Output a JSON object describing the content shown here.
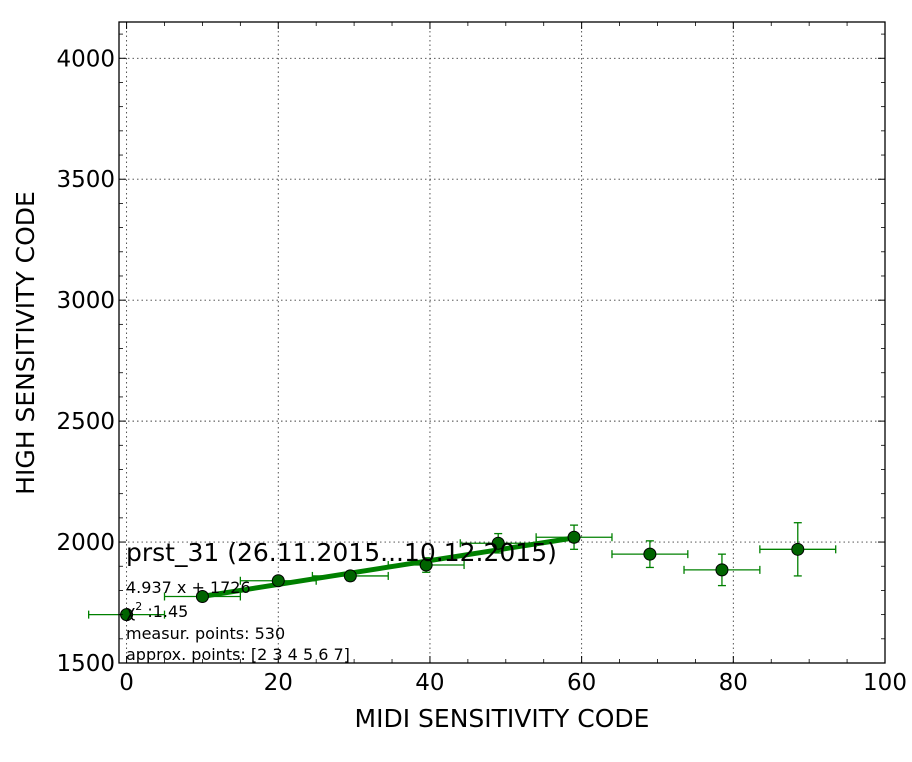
{
  "chart_data": {
    "type": "scatter",
    "title": "prst_31 (26.11.2015...10.12.2015)",
    "xlabel": "MIDI SENSITIVITY CODE",
    "ylabel": "HIGH SENSITIVITY CODE",
    "xlim": [
      -1,
      100
    ],
    "ylim": [
      1500,
      4150
    ],
    "xticks": [
      0,
      20,
      40,
      60,
      80,
      100
    ],
    "yticks": [
      1500,
      2000,
      2500,
      3000,
      3500,
      4000
    ],
    "grid": true,
    "colors": {
      "series": "#008000",
      "marker_face": "#006400"
    },
    "series": [
      {
        "kind": "points_with_errorbars",
        "x": [
          0,
          10,
          20,
          29.5,
          39.5,
          49,
          59,
          69,
          78.5,
          88.5
        ],
        "y": [
          1700,
          1775,
          1840,
          1860,
          1905,
          1995,
          2020,
          1950,
          1885,
          1970
        ],
        "xerr": [
          5,
          5,
          5,
          5,
          5,
          5,
          5,
          5,
          5,
          5
        ],
        "yerr": [
          12,
          12,
          15,
          20,
          30,
          40,
          50,
          55,
          65,
          110
        ]
      },
      {
        "kind": "fit_line",
        "slope": 4.937,
        "intercept": 1726,
        "x_range": [
          10,
          59
        ]
      }
    ],
    "annotations": [
      {
        "id": "fit",
        "text": "4.937 x + 1726"
      },
      {
        "id": "chi_prefix",
        "text": "χ"
      },
      {
        "id": "chi_sup",
        "text": "2"
      },
      {
        "id": "chi",
        "text": " :1.45"
      },
      {
        "id": "measur",
        "text": "measur. points: 530"
      },
      {
        "id": "approx",
        "text": "approx. points: [2 3 4 5 6 7]"
      }
    ]
  }
}
